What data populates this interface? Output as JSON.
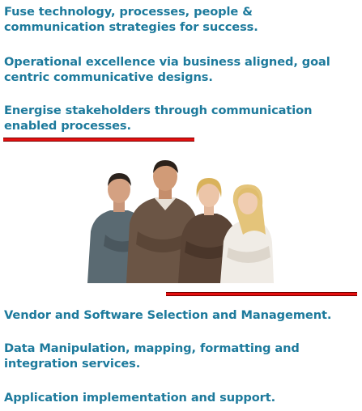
{
  "intro": {
    "p1": "Fuse technology, processes, people &\ncommunication strategies for success.",
    "p2": "Operational excellence via business aligned, goal\ncentric communicative designs.",
    "p3": "Energise stakeholders through communication\nenabled processes."
  },
  "services": {
    "p1": "Vendor and Software Selection and Management.",
    "p2": "Data Manipulation, mapping, formatting and\nintegration services.",
    "p3": "Application implementation and support."
  },
  "colors": {
    "text": "#1d7a9c",
    "rule": "#e41010"
  }
}
